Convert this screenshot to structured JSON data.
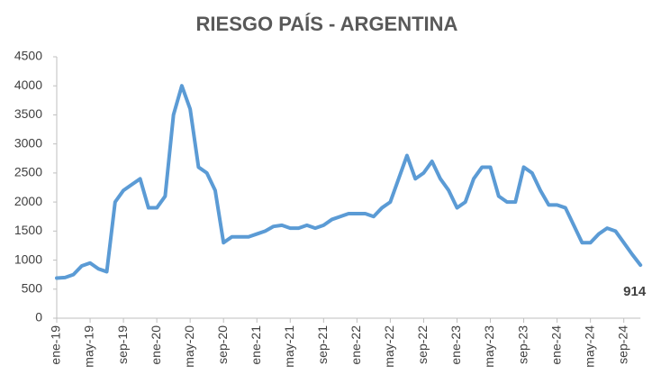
{
  "chart_data": {
    "type": "line",
    "title": "RIESGO PAÍS - ARGENTINA",
    "categories": [
      "ene-19",
      null,
      null,
      null,
      "may-19",
      null,
      null,
      null,
      "sep-19",
      null,
      null,
      null,
      "ene-20",
      null,
      null,
      null,
      "may-20",
      null,
      null,
      null,
      "sep-20",
      null,
      null,
      null,
      "ene-21",
      null,
      null,
      null,
      "may-21",
      null,
      null,
      null,
      "sep-21",
      null,
      null,
      null,
      "ene-22",
      null,
      null,
      null,
      "may-22",
      null,
      null,
      null,
      "sep-22",
      null,
      null,
      null,
      "ene-23",
      null,
      null,
      null,
      "may-23",
      null,
      null,
      null,
      "sep-23",
      null,
      null,
      null,
      "ene-24",
      null,
      null,
      null,
      "may-24",
      null,
      null,
      null,
      "sep-24",
      null,
      null
    ],
    "series": [
      {
        "name": "Riesgo país",
        "color": "#5b9bd5",
        "values": [
          690,
          700,
          750,
          900,
          950,
          850,
          800,
          2000,
          2200,
          2300,
          2400,
          1900,
          1900,
          2100,
          3500,
          4000,
          3600,
          2600,
          2500,
          2200,
          1300,
          1400,
          1400,
          1400,
          1450,
          1500,
          1580,
          1600,
          1550,
          1550,
          1600,
          1550,
          1600,
          1700,
          1750,
          1800,
          1800,
          1800,
          1750,
          1900,
          2000,
          2400,
          2800,
          2400,
          2500,
          2700,
          2400,
          2200,
          1900,
          2000,
          2400,
          2600,
          2600,
          2100,
          2000,
          2000,
          2600,
          2500,
          2200,
          1950,
          1950,
          1900,
          1600,
          1300,
          1300,
          1450,
          1550,
          1500,
          1300,
          1100,
          914
        ]
      }
    ],
    "ylim": [
      0,
      4500
    ],
    "yticks": [
      0,
      500,
      1000,
      1500,
      2000,
      2500,
      3000,
      3500,
      4000,
      4500
    ],
    "grid": false
  }
}
